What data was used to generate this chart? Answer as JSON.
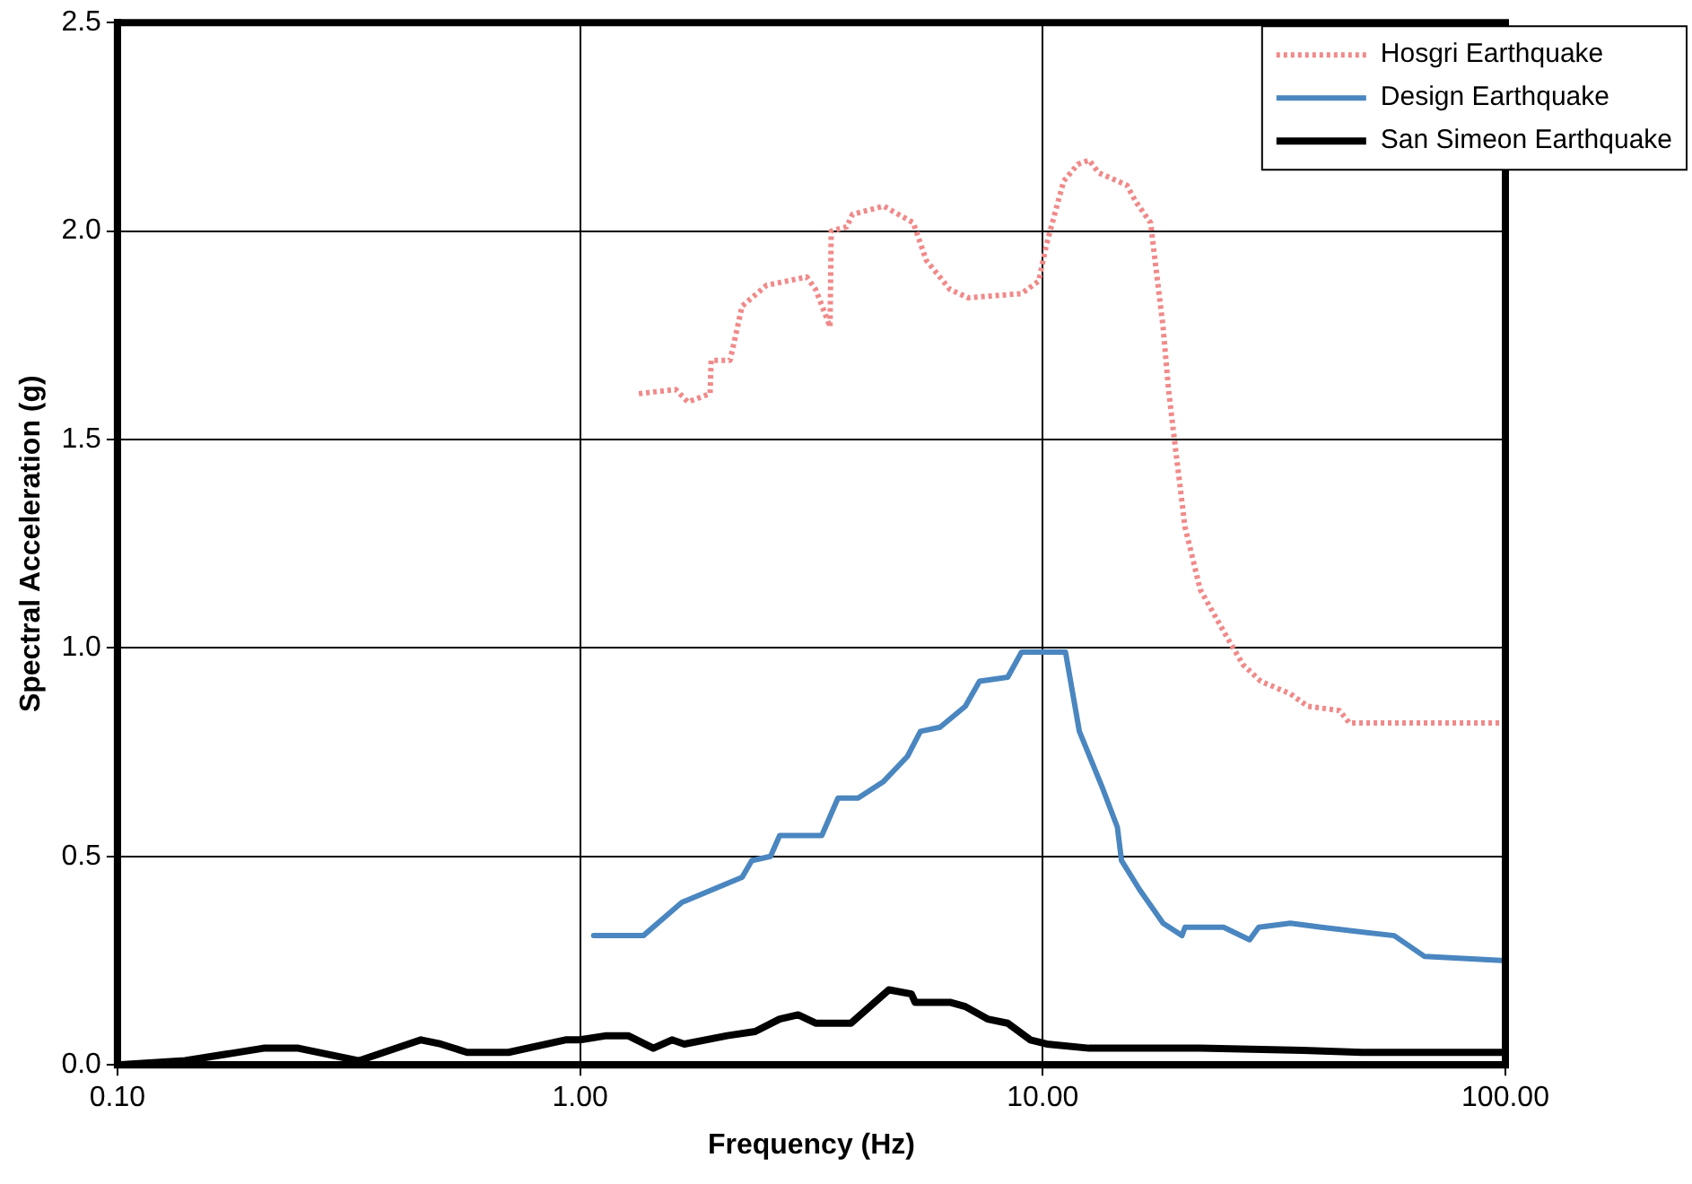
{
  "chart_data": {
    "type": "line",
    "xlabel": "Frequency (Hz)",
    "ylabel": "Spectral Acceleration (g)",
    "log": "x",
    "grid": true,
    "legend": "top right",
    "marker": "none",
    "xlim": [
      0.1,
      100
    ],
    "xticks": [
      {
        "value": 0.1,
        "label": "0.10"
      },
      {
        "value": 1,
        "label": "1.00"
      },
      {
        "value": 10,
        "label": "10.00"
      },
      {
        "value": 100,
        "label": "100.00"
      }
    ],
    "ylim": [
      0,
      2.5
    ],
    "yticks": [
      {
        "value": 0,
        "label": "0.0"
      },
      {
        "value": 0.5,
        "label": "0.5"
      },
      {
        "value": 1,
        "label": "1.0"
      },
      {
        "value": 1.5,
        "label": "1.5"
      },
      {
        "value": 2,
        "label": "2.0"
      },
      {
        "value": 2.5,
        "label": "2.5"
      }
    ],
    "series": [
      {
        "name": "Hosgri Earthquake",
        "color": "#f08a8a",
        "line_style": "dotted",
        "x": [
          1.34,
          1.61,
          1.71,
          1.91,
          1.92,
          2.11,
          2.24,
          2.53,
          3.09,
          3.23,
          3.47,
          3.49,
          3.77,
          3.88,
          4.53,
          5.25,
          5.6,
          6.3,
          6.9,
          9.0,
          9.8,
          10.2,
          11.1,
          11.9,
          12.6,
          13.2,
          15.2,
          15.9,
          17.1,
          18.2,
          18.7,
          19.4,
          20.3,
          21.9,
          24.6,
          27.1,
          29.6,
          34.3,
          37.4,
          43.8,
          46.0,
          100
        ],
        "values": [
          1.61,
          1.62,
          1.59,
          1.61,
          1.69,
          1.69,
          1.82,
          1.87,
          1.89,
          1.86,
          1.77,
          2.0,
          2.01,
          2.04,
          2.06,
          2.02,
          1.93,
          1.86,
          1.84,
          1.85,
          1.88,
          1.97,
          2.12,
          2.16,
          2.17,
          2.14,
          2.11,
          2.07,
          2.02,
          1.77,
          1.62,
          1.47,
          1.29,
          1.14,
          1.04,
          0.96,
          0.92,
          0.89,
          0.86,
          0.85,
          0.82,
          0.82
        ]
      },
      {
        "name": "Design Earthquake",
        "color": "#4a86c0",
        "line_style": "solid",
        "x": [
          1.07,
          1.37,
          1.66,
          2.24,
          2.35,
          2.58,
          2.7,
          3.33,
          3.61,
          3.99,
          4.53,
          5.1,
          5.44,
          6.0,
          6.8,
          7.3,
          8.4,
          9.0,
          11.2,
          12.0,
          13.4,
          14.5,
          14.8,
          16.2,
          18.2,
          20.0,
          20.3,
          24.6,
          28.0,
          29.3,
          34.3,
          40.0,
          57.5,
          66.9,
          100
        ],
        "values": [
          0.31,
          0.31,
          0.39,
          0.45,
          0.49,
          0.5,
          0.55,
          0.55,
          0.64,
          0.64,
          0.68,
          0.74,
          0.8,
          0.81,
          0.86,
          0.92,
          0.93,
          0.99,
          0.99,
          0.8,
          0.67,
          0.57,
          0.49,
          0.42,
          0.34,
          0.31,
          0.33,
          0.33,
          0.3,
          0.33,
          0.34,
          0.33,
          0.31,
          0.26,
          0.25
        ]
      },
      {
        "name": "San Simeon Earthquake",
        "color": "#000000",
        "line_style": "solid",
        "x": [
          0.1,
          0.14,
          0.207,
          0.246,
          0.333,
          0.453,
          0.5,
          0.57,
          0.7,
          0.93,
          1.0,
          1.14,
          1.27,
          1.44,
          1.58,
          1.68,
          2.08,
          2.39,
          2.7,
          2.96,
          3.23,
          3.85,
          4.65,
          5.2,
          5.3,
          6.3,
          6.8,
          7.6,
          8.4,
          9.4,
          10.2,
          12.6,
          21.9,
          36.5,
          49,
          100
        ],
        "values": [
          0.0,
          0.01,
          0.04,
          0.04,
          0.01,
          0.06,
          0.05,
          0.03,
          0.03,
          0.06,
          0.06,
          0.07,
          0.07,
          0.04,
          0.06,
          0.05,
          0.07,
          0.08,
          0.11,
          0.12,
          0.1,
          0.1,
          0.18,
          0.17,
          0.15,
          0.15,
          0.14,
          0.11,
          0.1,
          0.06,
          0.05,
          0.04,
          0.04,
          0.035,
          0.03,
          0.03
        ]
      }
    ]
  }
}
